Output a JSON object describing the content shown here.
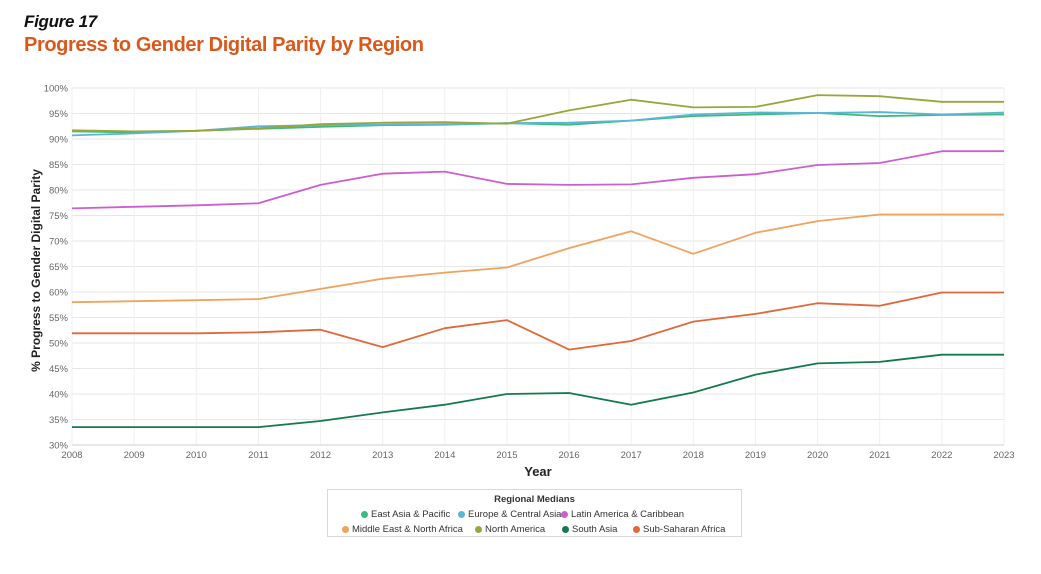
{
  "figure_label": "Figure 17",
  "title": "Progress to Gender Digital Parity by Region",
  "legend_title": "Regional Medians",
  "chart_data": {
    "type": "line",
    "title": "Progress to Gender Digital Parity by Region",
    "xlabel": "Year",
    "ylabel": "% Progress to Gender Digital Parity",
    "ylim": [
      30,
      100
    ],
    "yticks": [
      "30%",
      "35%",
      "40%",
      "45%",
      "50%",
      "55%",
      "60%",
      "65%",
      "70%",
      "75%",
      "80%",
      "85%",
      "90%",
      "95%",
      "100%"
    ],
    "x": [
      2008,
      2009,
      2010,
      2011,
      2012,
      2013,
      2014,
      2015,
      2016,
      2017,
      2018,
      2019,
      2020,
      2021,
      2022,
      2023
    ],
    "grid": true,
    "legend_position": "bottom-center",
    "series": [
      {
        "name": "East Asia & Pacific",
        "color": "#3dba7e",
        "values": [
          91.5,
          91.3,
          91.6,
          92.0,
          92.4,
          92.7,
          92.8,
          93.1,
          92.8,
          93.6,
          94.5,
          94.8,
          95.1,
          94.5,
          94.7,
          94.8
        ]
      },
      {
        "name": "Europe & Central Asia",
        "color": "#5bb6d6",
        "values": [
          90.7,
          91.1,
          91.6,
          92.5,
          92.7,
          92.8,
          92.9,
          93.1,
          93.2,
          93.6,
          94.8,
          95.2,
          95.1,
          95.3,
          94.8,
          95.2
        ]
      },
      {
        "name": "Latin America & Caribbean",
        "color": "#cc5fcf",
        "values": [
          76.4,
          76.7,
          77.0,
          77.4,
          81.0,
          83.2,
          83.6,
          81.2,
          81.0,
          81.1,
          82.4,
          83.1,
          84.9,
          85.3,
          87.6,
          87.6
        ]
      },
      {
        "name": "Middle East & North Africa",
        "color": "#f0a35e",
        "values": [
          58.0,
          58.2,
          58.4,
          58.6,
          60.6,
          62.6,
          63.8,
          64.8,
          68.6,
          71.9,
          67.5,
          71.6,
          73.9,
          75.2,
          75.2,
          75.2
        ]
      },
      {
        "name": "North America",
        "color": "#9aa63b",
        "values": [
          91.7,
          91.5,
          91.6,
          92.1,
          92.9,
          93.2,
          93.3,
          93.0,
          95.6,
          97.7,
          96.2,
          96.3,
          98.6,
          98.4,
          97.3,
          97.3
        ]
      },
      {
        "name": "South Asia",
        "color": "#137a4e",
        "values": [
          33.5,
          33.5,
          33.5,
          33.5,
          34.7,
          36.4,
          37.9,
          40.0,
          40.2,
          37.9,
          40.3,
          43.8,
          46.0,
          46.3,
          47.7,
          47.7
        ]
      },
      {
        "name": "Sub-Saharan Africa",
        "color": "#e0683a",
        "values": [
          51.9,
          51.9,
          51.9,
          52.1,
          52.6,
          49.2,
          52.9,
          54.5,
          48.7,
          50.4,
          54.2,
          55.7,
          57.8,
          57.3,
          59.9,
          59.9
        ]
      }
    ]
  }
}
